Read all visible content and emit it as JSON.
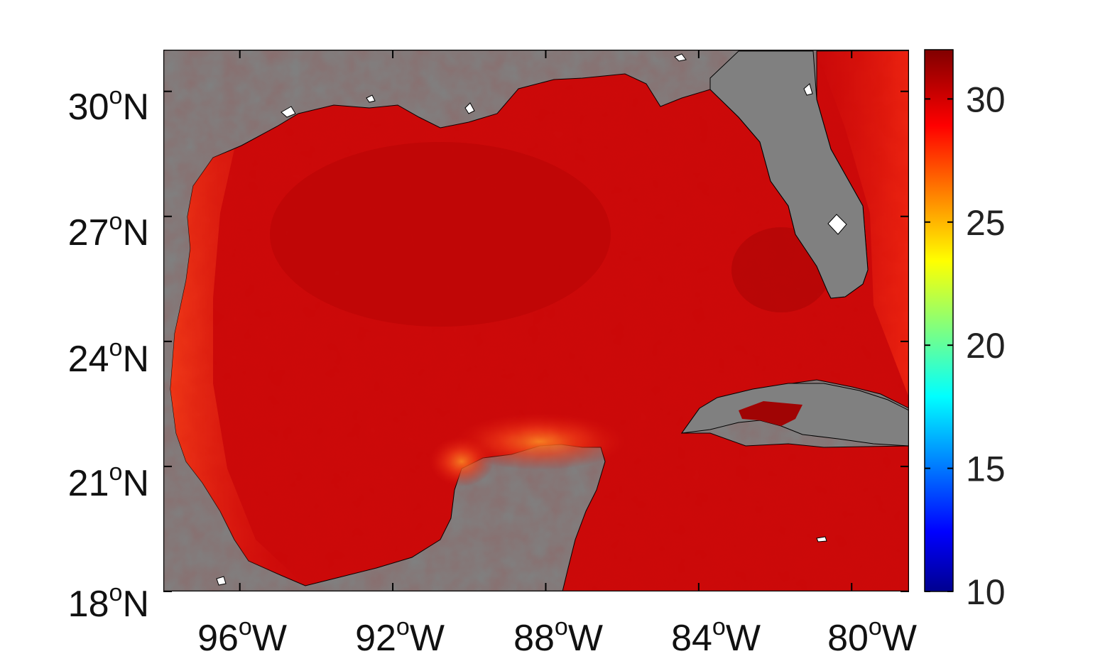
{
  "map": {
    "extent": {
      "lon_min": -98,
      "lon_max": -78.5,
      "lat_min": 18,
      "lat_max": 31
    },
    "land_color": "#808080",
    "frame_color": "#000000",
    "x_ticks": [
      {
        "lon": -96,
        "deg": "96",
        "sup": "o",
        "hem": "W"
      },
      {
        "lon": -92,
        "deg": "92",
        "sup": "o",
        "hem": "W"
      },
      {
        "lon": -88,
        "deg": "88",
        "sup": "o",
        "hem": "W"
      },
      {
        "lon": -84,
        "deg": "84",
        "sup": "o",
        "hem": "W"
      },
      {
        "lon": -80,
        "deg": "80",
        "sup": "o",
        "hem": "W"
      }
    ],
    "y_ticks": [
      {
        "lat": 30,
        "deg": "30",
        "sup": "o",
        "hem": "N"
      },
      {
        "lat": 27,
        "deg": "27",
        "sup": "o",
        "hem": "N"
      },
      {
        "lat": 24,
        "deg": "24",
        "sup": "o",
        "hem": "N"
      },
      {
        "lat": 21,
        "deg": "21",
        "sup": "o",
        "hem": "N"
      },
      {
        "lat": 18,
        "deg": "18",
        "sup": "o",
        "hem": "N"
      }
    ],
    "field_colors": {
      "sea_base": "#cc0a0a",
      "sea_warm_edge": "#f03012",
      "sea_hot_spot": "#fa6a1a",
      "sea_deep": "#a80404"
    }
  },
  "colorbar": {
    "min": 10,
    "max": 32,
    "colormap": "jet",
    "ticks": [
      {
        "value": 30,
        "label": "30"
      },
      {
        "value": 25,
        "label": "25"
      },
      {
        "value": 20,
        "label": "20"
      },
      {
        "value": 15,
        "label": "15"
      },
      {
        "value": 10,
        "label": "10"
      }
    ]
  }
}
